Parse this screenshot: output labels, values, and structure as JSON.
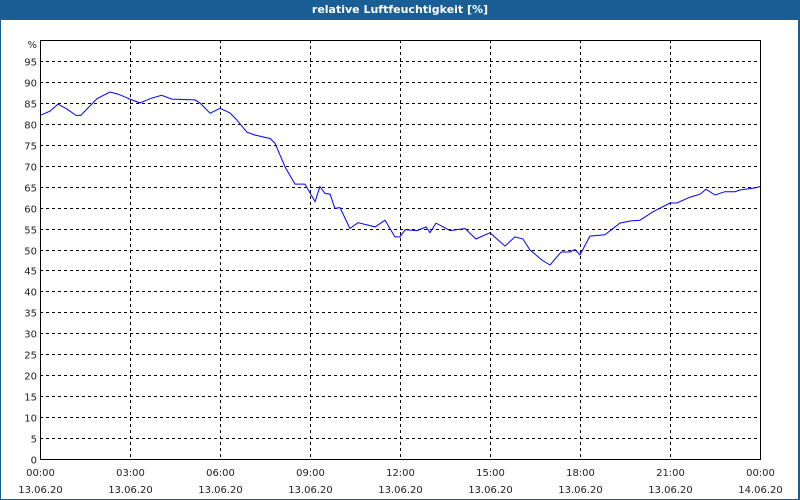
{
  "chart_data": {
    "type": "line",
    "title": "relative Luftfeuchtigkeit [%]",
    "ylabel": "%",
    "xlabel": "",
    "ylim": [
      0,
      100
    ],
    "xlim_hours": [
      0,
      24
    ],
    "grid": true,
    "y_ticks": [
      0,
      5,
      10,
      15,
      20,
      25,
      30,
      35,
      40,
      45,
      50,
      55,
      60,
      65,
      70,
      75,
      80,
      85,
      90,
      95
    ],
    "x_ticks": [
      {
        "hour": 0,
        "time": "00:00",
        "date": "13.06.20"
      },
      {
        "hour": 3,
        "time": "03:00",
        "date": "13.06.20"
      },
      {
        "hour": 6,
        "time": "06:00",
        "date": "13.06.20"
      },
      {
        "hour": 9,
        "time": "09:00",
        "date": "13.06.20"
      },
      {
        "hour": 12,
        "time": "12:00",
        "date": "13.06.20"
      },
      {
        "hour": 15,
        "time": "15:00",
        "date": "13.06.20"
      },
      {
        "hour": 18,
        "time": "18:00",
        "date": "13.06.20"
      },
      {
        "hour": 21,
        "time": "21:00",
        "date": "13.06.20"
      },
      {
        "hour": 24,
        "time": "00:00",
        "date": "14.06.20"
      }
    ],
    "series": [
      {
        "name": "relative Luftfeuchtigkeit",
        "color": "#0000ff",
        "x": [
          0,
          0.33,
          0.6,
          0.9,
          1.2,
          1.36,
          1.9,
          2.33,
          2.6,
          3.0,
          3.33,
          3.67,
          4.05,
          4.4,
          5.17,
          5.33,
          5.67,
          6.0,
          6.33,
          6.55,
          6.9,
          7.17,
          7.67,
          7.83,
          8.17,
          8.5,
          8.83,
          9.17,
          9.33,
          9.5,
          9.67,
          9.83,
          10.0,
          10.33,
          10.6,
          10.83,
          11.17,
          11.5,
          11.83,
          12.0,
          12.17,
          12.57,
          12.87,
          13.0,
          13.2,
          13.67,
          14.17,
          14.53,
          15.0,
          15.23,
          15.5,
          15.83,
          16.1,
          16.33,
          16.73,
          17.0,
          17.37,
          17.67,
          17.83,
          18.0,
          18.33,
          18.83,
          19.33,
          19.67,
          20.0,
          20.43,
          21.0,
          21.23,
          21.67,
          22.0,
          22.2,
          22.5,
          22.83,
          23.17,
          23.33,
          23.83,
          24.0
        ],
        "values": [
          82.0,
          83.0,
          84.7,
          83.5,
          82.0,
          82.0,
          86.0,
          87.6,
          87.1,
          85.9,
          85.0,
          86.0,
          86.8,
          85.9,
          85.7,
          85.0,
          82.5,
          83.7,
          82.6,
          81.0,
          78.0,
          77.3,
          76.5,
          75.4,
          69.7,
          65.6,
          65.6,
          61.4,
          65.0,
          63.4,
          63.2,
          59.8,
          60.0,
          55.0,
          56.4,
          56.0,
          55.4,
          57.0,
          53.0,
          53.0,
          54.7,
          54.5,
          55.4,
          54.0,
          56.3,
          54.5,
          55.0,
          52.5,
          54.0,
          52.5,
          50.8,
          53.0,
          52.5,
          49.9,
          47.5,
          46.3,
          49.4,
          49.4,
          50.0,
          48.7,
          53.2,
          53.5,
          56.3,
          56.8,
          57.0,
          59.0,
          61.1,
          61.1,
          62.5,
          63.2,
          64.4,
          63.0,
          63.8,
          63.8,
          64.2,
          64.7,
          65.0
        ]
      }
    ]
  }
}
